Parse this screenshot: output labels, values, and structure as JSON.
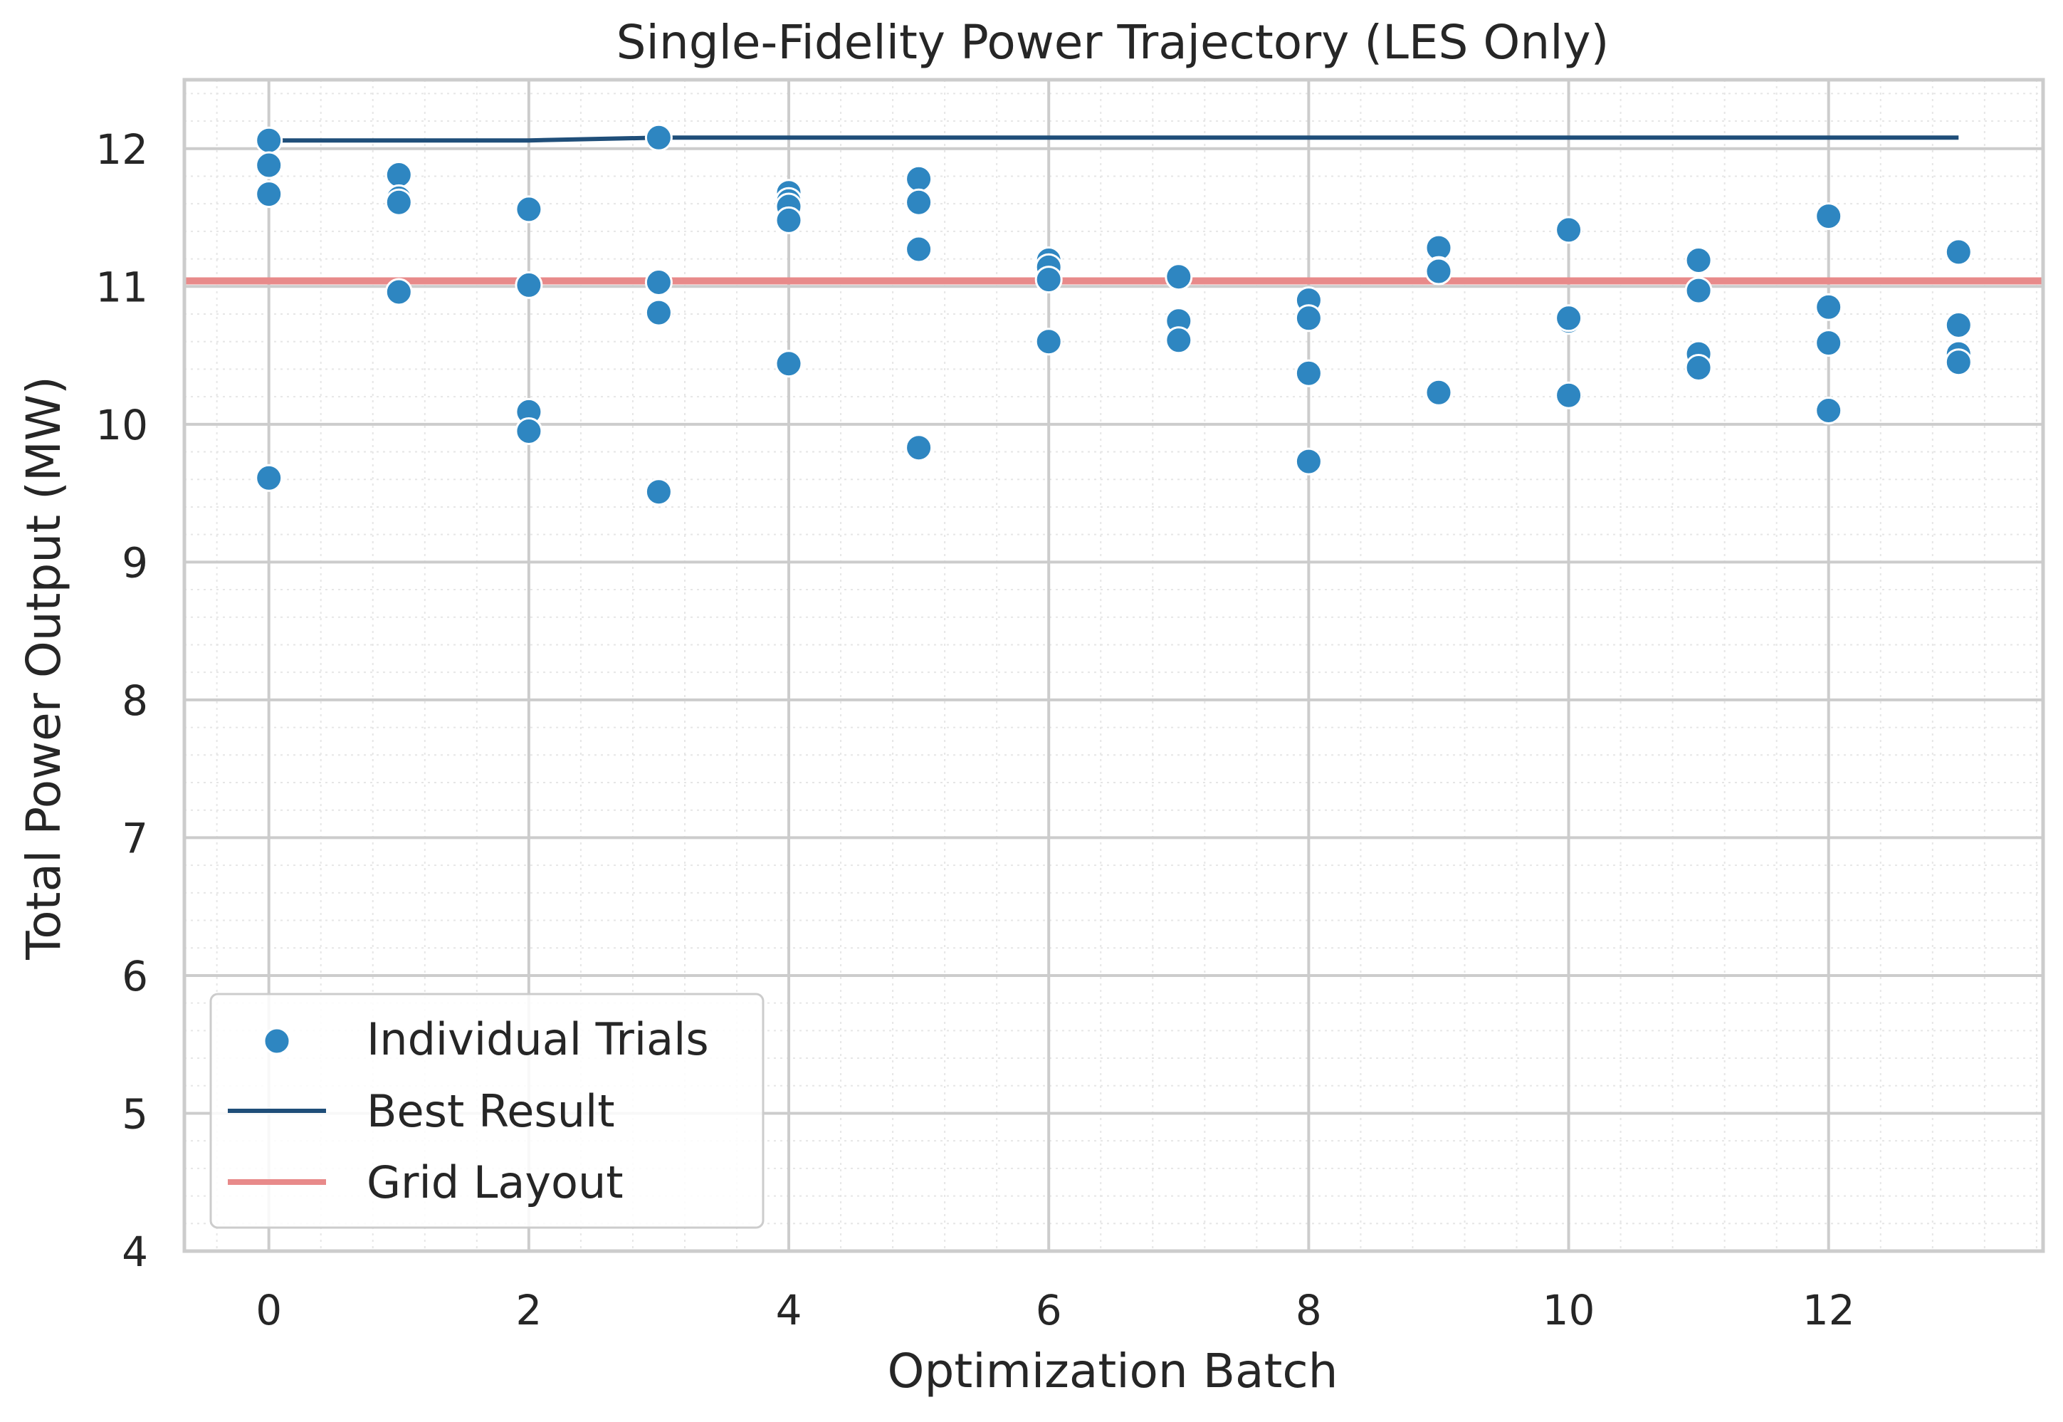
{
  "chart_data": {
    "type": "scatter",
    "title": "Single-Fidelity Power Trajectory (LES Only)",
    "xlabel": "Optimization Batch",
    "ylabel": "Total Power Output (MW)",
    "xlim": [
      -0.65,
      13.65
    ],
    "ylim": [
      4,
      12.5
    ],
    "x_ticks": [
      0,
      2,
      4,
      6,
      8,
      10,
      12
    ],
    "y_ticks": [
      4,
      5,
      6,
      7,
      8,
      9,
      10,
      11,
      12
    ],
    "grid": true,
    "minor_grid": true,
    "legend_position": "lower-left",
    "series": [
      {
        "name": "Individual Trials",
        "kind": "scatter",
        "color": "#2e86c1",
        "points": [
          [
            0,
            12.06
          ],
          [
            0,
            11.88
          ],
          [
            0,
            11.67
          ],
          [
            0,
            9.61
          ],
          [
            1,
            11.81
          ],
          [
            1,
            11.64
          ],
          [
            1,
            11.61
          ],
          [
            1,
            10.96
          ],
          [
            2,
            11.56
          ],
          [
            2,
            11.01
          ],
          [
            2,
            10.09
          ],
          [
            2,
            9.95
          ],
          [
            3,
            12.08
          ],
          [
            3,
            11.03
          ],
          [
            3,
            10.81
          ],
          [
            3,
            9.51
          ],
          [
            4,
            11.68
          ],
          [
            4,
            11.62
          ],
          [
            4,
            11.58
          ],
          [
            4,
            11.48
          ],
          [
            4,
            10.44
          ],
          [
            5,
            11.78
          ],
          [
            5,
            11.61
          ],
          [
            5,
            11.27
          ],
          [
            5,
            9.83
          ],
          [
            6,
            11.19
          ],
          [
            6,
            11.14
          ],
          [
            6,
            11.05
          ],
          [
            6,
            10.6
          ],
          [
            7,
            11.07
          ],
          [
            7,
            10.75
          ],
          [
            7,
            10.61
          ],
          [
            8,
            10.9
          ],
          [
            8,
            10.77
          ],
          [
            8,
            10.37
          ],
          [
            8,
            9.73
          ],
          [
            9,
            11.28
          ],
          [
            9,
            11.12
          ],
          [
            9,
            11.11
          ],
          [
            9,
            10.23
          ],
          [
            10,
            11.41
          ],
          [
            10,
            10.75
          ],
          [
            10,
            10.77
          ],
          [
            10,
            10.21
          ],
          [
            11,
            11.19
          ],
          [
            11,
            10.97
          ],
          [
            11,
            10.51
          ],
          [
            11,
            10.41
          ],
          [
            12,
            11.51
          ],
          [
            12,
            10.85
          ],
          [
            12,
            10.59
          ],
          [
            12,
            10.1
          ],
          [
            13,
            11.25
          ],
          [
            13,
            10.72
          ],
          [
            13,
            10.51
          ],
          [
            13,
            10.45
          ]
        ]
      },
      {
        "name": "Best Result",
        "kind": "line",
        "color": "#1f4e79",
        "x": [
          0,
          1,
          2,
          3,
          4,
          5,
          6,
          7,
          8,
          9,
          10,
          11,
          12,
          13
        ],
        "y": [
          12.06,
          12.06,
          12.06,
          12.08,
          12.08,
          12.08,
          12.08,
          12.08,
          12.08,
          12.08,
          12.08,
          12.08,
          12.08,
          12.08
        ]
      },
      {
        "name": "Grid Layout",
        "kind": "hline",
        "color": "#e88a8a",
        "y": 11.04
      }
    ]
  }
}
